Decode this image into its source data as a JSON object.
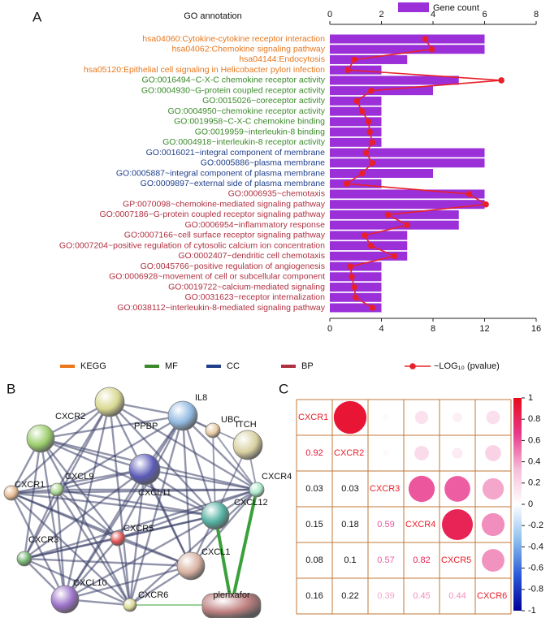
{
  "panel_labels": [
    "A",
    "B",
    "C"
  ],
  "chart_data": [
    {
      "type": "bar",
      "orientation": "horizontal",
      "title": "GO annotation",
      "categories": [
        "hsa04060:Cytokine-cytokine receptor interaction",
        "hsa04062:Chemokine signaling pathway",
        "hsa04144:Endocytosis",
        "hsa05120:Epithelial cell signaling in Helicobacter pylori infection",
        "GO:0016494~C-X-C chemokine receptor activity",
        "GO:0004930~G-protein coupled receptor activity",
        "GO:0015026~coreceptor activity",
        "GO:0004950~chemokine receptor activity",
        "GO:0019958~C-X-C chemokine binding",
        "GO:0019959~interleukin-8 binding",
        "GO:0004918~interleukin-8 receptor activity",
        "GO:0016021~integral component of membrane",
        "GO:0005886~plasma membrane",
        "GO:0005887~integral component of plasma membrane",
        "GO:0009897~external side of plasma membrane",
        "GO:0006935~chemotaxis",
        "GP:0070098~chemokine-mediated signaling pathway",
        "GO:0007186~G-protein coupled receptor signaling pathway",
        "GO:0006954~inflammatory response",
        "GO:0007166~cell surface receptor signaling pathway",
        "GO:0007204~positive regulation of cytosolic calcium ion concentration",
        "GO:0002407~dendritic cell chemotaxis",
        "GO:0045766~positive regulation of angiogenesis",
        "GO:0006928~movement of cell or subcellular component",
        "GO:0019722~calcium-mediated signaling",
        "GO:0031623~receptor internalization",
        "GO:0038112~interleukin-8-mediated signaling pathway"
      ],
      "label_colors": [
        "#e8771d",
        "#e8771d",
        "#e8771d",
        "#e8771d",
        "#3a8a2a",
        "#3a8a2a",
        "#3a8a2a",
        "#3a8a2a",
        "#3a8a2a",
        "#3a8a2a",
        "#3a8a2a",
        "#1f3f8a",
        "#1f3f8a",
        "#1f3f8a",
        "#1f3f8a",
        "#b03040",
        "#b03040",
        "#b03040",
        "#b03040",
        "#b03040",
        "#b03040",
        "#b03040",
        "#b03040",
        "#b03040",
        "#b03040",
        "#b03040",
        "#b03040"
      ],
      "groups": [
        {
          "name": "KEGG",
          "color": "#e8771d"
        },
        {
          "name": "MF",
          "color": "#3a8a2a"
        },
        {
          "name": "CC",
          "color": "#1f3f8a"
        },
        {
          "name": "BP",
          "color": "#b03040"
        }
      ],
      "series": [
        {
          "name": "Gene count",
          "color": "#9b30d9",
          "axis": "x2",
          "values": [
            6,
            6,
            3,
            2,
            5,
            4,
            2,
            2,
            2,
            2,
            2,
            6,
            6,
            4,
            2,
            6,
            6,
            5,
            5,
            3,
            3,
            3,
            2,
            2,
            2,
            2,
            2
          ]
        },
        {
          "name": "−LOG₁₀ (pvalue)",
          "color": "#e8202a",
          "values": [
            7.4,
            7.9,
            1.9,
            1.4,
            13.3,
            3.2,
            2.1,
            2.5,
            3.0,
            3.1,
            3.3,
            2.8,
            3.3,
            2.5,
            1.3,
            10.8,
            12.1,
            4.5,
            6.0,
            2.7,
            3.2,
            5.0,
            1.6,
            1.7,
            1.9,
            2.0,
            3.3
          ]
        }
      ],
      "x2lim": [
        0,
        8
      ],
      "x2ticks": [
        0,
        2,
        4,
        6,
        8
      ],
      "xlim": [
        0,
        16
      ],
      "xticks": [
        0,
        4,
        8,
        12,
        16
      ]
    },
    {
      "type": "corrplot",
      "labels": [
        "CXCR1",
        "CXCR2",
        "CXCR3",
        "CXCR4",
        "CXCR5",
        "CXCR6"
      ],
      "values": [
        [],
        [
          0.92
        ],
        [
          0.03,
          0.03
        ],
        [
          0.15,
          0.18,
          0.59
        ],
        [
          0.08,
          0.1,
          0.57,
          0.82
        ],
        [
          0.16,
          0.22,
          0.39,
          0.45,
          0.44
        ]
      ],
      "clim": [
        -1,
        1
      ],
      "cticks": [
        1,
        0.8,
        0.6,
        0.4,
        0.2,
        0,
        -0.2,
        -0.4,
        -0.6,
        -0.8,
        -1
      ],
      "colorscale": [
        "#00009a",
        "#2a5ad8",
        "#8ec0ee",
        "#ffffff",
        "#f6bcd8",
        "#e8388a",
        "#e80a1a"
      ]
    }
  ],
  "network": {
    "nodes": [
      "PPBP",
      "IL8",
      "CXCR2",
      "UBC",
      "ITCH",
      "CXCL11",
      "CXCR1",
      "CXCL9",
      "CXCR4",
      "CXCL12",
      "CXCR5",
      "CXCR3",
      "CXCL1",
      "CXCL10",
      "CXCR6",
      "plerixafor"
    ]
  }
}
